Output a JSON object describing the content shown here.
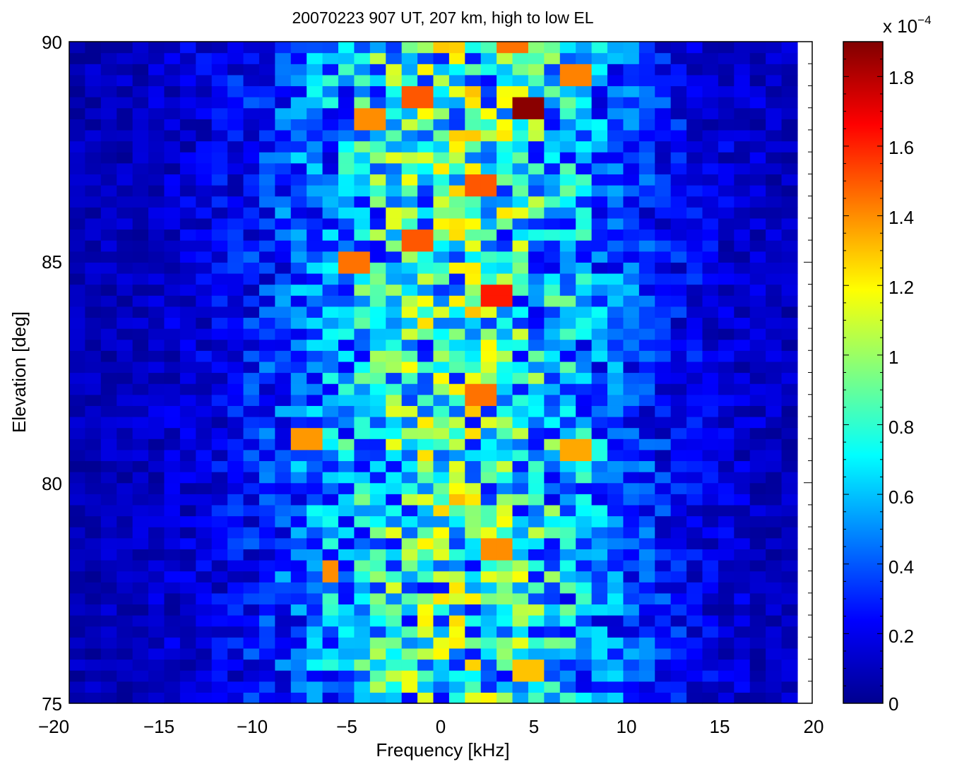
{
  "chart_data": {
    "type": "heatmap",
    "title": "20070223 907 UT, 207 km, high to low EL",
    "xlabel": "Frequency [kHz]",
    "ylabel": "Elevation [deg]",
    "xlim": [
      -20,
      20
    ],
    "ylim": [
      75,
      90
    ],
    "xticks": [
      "−20",
      "−15",
      "−10",
      "−5",
      "0",
      "5",
      "10",
      "15",
      "20"
    ],
    "yticks": [
      "75",
      "80",
      "85",
      "90"
    ],
    "colorbar": {
      "colormap": "jet",
      "min": 0,
      "max": 1.9,
      "exponent_label": "x 10",
      "exponent": "−4",
      "ticks": [
        "0",
        "0.2",
        "0.4",
        "0.6",
        "0.8",
        "1",
        "1.2",
        "1.4",
        "1.6",
        "1.8"
      ]
    },
    "freq_bins": [
      -18.75,
      -17.5,
      -16.25,
      -15,
      -13.75,
      -12.5,
      -11.25,
      -10,
      -8.75,
      -7.5,
      -6.25,
      -5,
      -3.75,
      -2.5,
      -1.25,
      0,
      1.25,
      2.5,
      3.75,
      5,
      6.25,
      7.5,
      8.75,
      10,
      11.25,
      12.5,
      13.75,
      15,
      16.25,
      17.5,
      18.75
    ],
    "elevation_bins": [
      89.75,
      89.25,
      88.75,
      88.25,
      87.75,
      87.25,
      86.75,
      86.25,
      85.75,
      85.25,
      84.75,
      84.25,
      83.75,
      83.25,
      82.75,
      82.25,
      81.75,
      81.25,
      80.75,
      80.25,
      79.75,
      79.25,
      78.75,
      78.25,
      77.75,
      77.25,
      76.75,
      76.25,
      75.75,
      75.25
    ],
    "peak_cells": [
      {
        "freq": 5,
        "elev": 88.5,
        "value": 1.88
      },
      {
        "freq": 3,
        "elev": 84.2,
        "value": 1.62
      },
      {
        "freq": 4,
        "elev": 89.9,
        "value": 1.45
      },
      {
        "freq": 7,
        "elev": 89.3,
        "value": 1.42
      },
      {
        "freq": -1,
        "elev": 88.7,
        "value": 1.5
      },
      {
        "freq": -4,
        "elev": 88.3,
        "value": 1.4
      },
      {
        "freq": 2,
        "elev": 86.7,
        "value": 1.5
      },
      {
        "freq": -4.5,
        "elev": 85.0,
        "value": 1.45
      },
      {
        "freq": -1,
        "elev": 85.5,
        "value": 1.5
      },
      {
        "freq": 2,
        "elev": 81.9,
        "value": 1.45
      },
      {
        "freq": 3,
        "elev": 78.6,
        "value": 1.4
      },
      {
        "freq": -7,
        "elev": 81.1,
        "value": 1.38
      },
      {
        "freq": 7,
        "elev": 80.7,
        "value": 1.35
      },
      {
        "freq": -6,
        "elev": 78.1,
        "value": 1.4
      },
      {
        "freq": 5,
        "elev": 75.8,
        "value": 1.3
      }
    ]
  }
}
